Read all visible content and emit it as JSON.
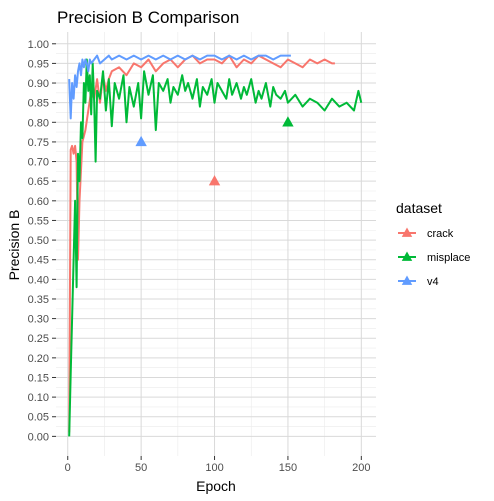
{
  "chart_data": {
    "type": "line",
    "title": "Precision B Comparison",
    "xlabel": "Epoch",
    "ylabel": "Precision B",
    "xlim": [
      -8,
      210
    ],
    "ylim": [
      -0.05,
      1.03
    ],
    "x_ticks": [
      0,
      50,
      100,
      150,
      200
    ],
    "y_ticks": [
      0.0,
      0.05,
      0.1,
      0.15,
      0.2,
      0.25,
      0.3,
      0.35,
      0.4,
      0.45,
      0.5,
      0.55,
      0.6,
      0.65,
      0.7,
      0.75,
      0.8,
      0.85,
      0.9,
      0.95,
      1.0
    ],
    "y_tick_labels": [
      "0.00",
      "0.05",
      "0.10",
      "0.15",
      "0.20",
      "0.25",
      "0.30",
      "0.35",
      "0.40",
      "0.45",
      "0.50",
      "0.55",
      "0.60",
      "0.65",
      "0.70",
      "0.75",
      "0.80",
      "0.85",
      "0.90",
      "0.95",
      "1.00"
    ],
    "grid": true,
    "legend": {
      "title": "dataset",
      "position": "right"
    },
    "series": [
      {
        "name": "crack",
        "color": "#F8766D",
        "x": [
          1,
          2,
          3,
          4,
          5,
          6,
          7,
          8,
          10,
          12,
          14,
          16,
          18,
          20,
          22,
          24,
          26,
          28,
          30,
          35,
          40,
          45,
          50,
          55,
          60,
          65,
          70,
          75,
          80,
          85,
          90,
          95,
          100,
          105,
          110,
          115,
          120,
          125,
          130,
          135,
          140,
          145,
          150,
          155,
          160,
          165,
          170,
          175,
          180,
          182
        ],
        "y": [
          0.01,
          0.73,
          0.74,
          0.72,
          0.74,
          0.7,
          0.45,
          0.6,
          0.75,
          0.78,
          0.83,
          0.88,
          0.86,
          0.91,
          0.85,
          0.92,
          0.88,
          0.91,
          0.93,
          0.94,
          0.92,
          0.95,
          0.94,
          0.96,
          0.93,
          0.95,
          0.96,
          0.94,
          0.96,
          0.97,
          0.95,
          0.96,
          0.96,
          0.95,
          0.97,
          0.94,
          0.96,
          0.95,
          0.97,
          0.96,
          0.95,
          0.94,
          0.96,
          0.95,
          0.94,
          0.96,
          0.95,
          0.96,
          0.95,
          0.95
        ],
        "marker": {
          "x": 100,
          "y": 0.65
        }
      },
      {
        "name": "misplace",
        "color": "#00BA38",
        "x": [
          1,
          2,
          3,
          4,
          5,
          6,
          7,
          8,
          9,
          10,
          11,
          12,
          13,
          14,
          15,
          16,
          17,
          18,
          19,
          20,
          22,
          24,
          26,
          28,
          30,
          32,
          35,
          38,
          40,
          42,
          45,
          48,
          50,
          52,
          55,
          58,
          60,
          62,
          65,
          68,
          70,
          72,
          75,
          78,
          80,
          82,
          85,
          88,
          90,
          92,
          95,
          98,
          100,
          102,
          105,
          108,
          110,
          112,
          115,
          118,
          120,
          122,
          125,
          128,
          130,
          132,
          135,
          138,
          140,
          142,
          145,
          148,
          150,
          155,
          160,
          165,
          170,
          175,
          180,
          185,
          190,
          195,
          198,
          200
        ],
        "y": [
          0.0,
          0.16,
          0.3,
          0.45,
          0.6,
          0.38,
          0.72,
          0.65,
          0.8,
          0.76,
          0.9,
          0.85,
          0.96,
          0.88,
          0.92,
          0.82,
          0.95,
          0.85,
          0.7,
          0.88,
          0.86,
          0.93,
          0.83,
          0.91,
          0.79,
          0.9,
          0.86,
          0.92,
          0.8,
          0.89,
          0.84,
          0.9,
          0.81,
          0.93,
          0.87,
          0.92,
          0.78,
          0.9,
          0.88,
          0.91,
          0.85,
          0.89,
          0.87,
          0.92,
          0.88,
          0.9,
          0.86,
          0.91,
          0.84,
          0.89,
          0.87,
          0.91,
          0.85,
          0.9,
          0.88,
          0.86,
          0.91,
          0.87,
          0.9,
          0.86,
          0.89,
          0.87,
          0.91,
          0.85,
          0.88,
          0.86,
          0.9,
          0.84,
          0.89,
          0.87,
          0.86,
          0.88,
          0.85,
          0.87,
          0.84,
          0.86,
          0.85,
          0.83,
          0.86,
          0.84,
          0.85,
          0.83,
          0.88,
          0.85
        ],
        "marker": {
          "x": 150,
          "y": 0.8
        }
      },
      {
        "name": "v4",
        "color": "#619CFF",
        "x": [
          1,
          2,
          3,
          4,
          5,
          6,
          7,
          8,
          9,
          10,
          11,
          12,
          13,
          14,
          15,
          16,
          18,
          20,
          22,
          25,
          28,
          30,
          35,
          40,
          45,
          50,
          55,
          60,
          65,
          70,
          75,
          80,
          85,
          90,
          95,
          100,
          105,
          110,
          115,
          120,
          125,
          130,
          135,
          140,
          145,
          150,
          152
        ],
        "y": [
          0.91,
          0.81,
          0.9,
          0.86,
          0.92,
          0.89,
          0.93,
          0.95,
          0.92,
          0.96,
          0.94,
          0.96,
          0.95,
          0.93,
          0.96,
          0.95,
          0.96,
          0.97,
          0.95,
          0.96,
          0.97,
          0.96,
          0.97,
          0.96,
          0.97,
          0.96,
          0.97,
          0.96,
          0.97,
          0.96,
          0.97,
          0.96,
          0.97,
          0.96,
          0.97,
          0.97,
          0.96,
          0.97,
          0.96,
          0.97,
          0.96,
          0.97,
          0.97,
          0.96,
          0.97,
          0.97,
          0.97
        ],
        "marker": {
          "x": 50,
          "y": 0.75
        }
      }
    ]
  }
}
